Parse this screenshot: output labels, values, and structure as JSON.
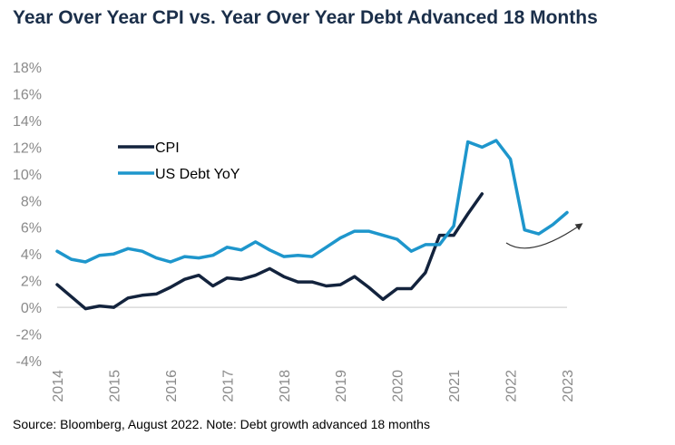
{
  "title": "Year Over Year CPI vs. Year Over Year Debt Advanced 18 Months",
  "source": "Source: Bloomberg, August 2022. Note: Debt growth advanced 18 months",
  "colors": {
    "cpi": "#13233d",
    "debt": "#1e96cc",
    "axis_text": "#8a8a8a",
    "title": "#1b2f4a",
    "arrow": "#333333"
  },
  "chart_data": {
    "type": "line",
    "title": "Year Over Year CPI vs. Year Over Year Debt Advanced 18 Months",
    "xlabel": "",
    "ylabel": "",
    "ylim": [
      -4,
      18
    ],
    "xlim": [
      2014,
      2023
    ],
    "y_ticks": [
      "18%",
      "16%",
      "14%",
      "12%",
      "10%",
      "8%",
      "6%",
      "4%",
      "2%",
      "0%",
      "-2%",
      "-4%"
    ],
    "x_ticks": [
      "2014",
      "2015",
      "2016",
      "2017",
      "2018",
      "2019",
      "2020",
      "2021",
      "2022",
      "2023"
    ],
    "grid": false,
    "legend_position": "upper-left",
    "series": [
      {
        "name": "CPI",
        "key": "cpi",
        "x": [
          2014.0,
          2014.25,
          2014.5,
          2014.75,
          2015.0,
          2015.25,
          2015.5,
          2015.75,
          2016.0,
          2016.25,
          2016.5,
          2016.75,
          2017.0,
          2017.25,
          2017.5,
          2017.75,
          2018.0,
          2018.25,
          2018.5,
          2018.75,
          2019.0,
          2019.25,
          2019.5,
          2019.75,
          2020.0,
          2020.25,
          2020.5,
          2020.75,
          2021.0,
          2021.25,
          2021.5
        ],
        "y": [
          1.7,
          0.8,
          -0.1,
          0.1,
          0.0,
          0.7,
          0.9,
          1.0,
          1.5,
          2.1,
          2.4,
          1.6,
          2.2,
          2.1,
          2.4,
          2.9,
          2.3,
          1.9,
          1.9,
          1.6,
          1.7,
          2.3,
          1.5,
          0.6,
          1.4,
          1.4,
          2.6,
          5.4,
          5.4,
          7.0,
          8.5
        ]
      },
      {
        "name": "US Debt YoY",
        "key": "debt",
        "x": [
          2014.0,
          2014.25,
          2014.5,
          2014.75,
          2015.0,
          2015.25,
          2015.5,
          2015.75,
          2016.0,
          2016.25,
          2016.5,
          2016.75,
          2017.0,
          2017.25,
          2017.5,
          2017.75,
          2018.0,
          2018.25,
          2018.5,
          2018.75,
          2019.0,
          2019.25,
          2019.5,
          2019.75,
          2020.0,
          2020.25,
          2020.5,
          2020.75,
          2021.0,
          2021.25,
          2021.5,
          2021.75,
          2022.0,
          2022.25,
          2022.5,
          2022.75,
          2023.0
        ],
        "y": [
          4.2,
          3.6,
          3.4,
          3.9,
          4.0,
          4.4,
          4.2,
          3.7,
          3.4,
          3.8,
          3.7,
          3.9,
          4.5,
          4.3,
          4.9,
          4.3,
          3.8,
          3.9,
          3.8,
          4.5,
          5.2,
          5.7,
          5.7,
          5.4,
          5.1,
          4.2,
          4.7,
          4.7,
          6.1,
          12.4,
          12.0,
          12.5,
          11.1,
          5.8,
          5.5,
          6.2,
          7.1
        ]
      }
    ],
    "annotations": [
      {
        "type": "arrow",
        "description": "curved upward trend arrow"
      }
    ]
  }
}
